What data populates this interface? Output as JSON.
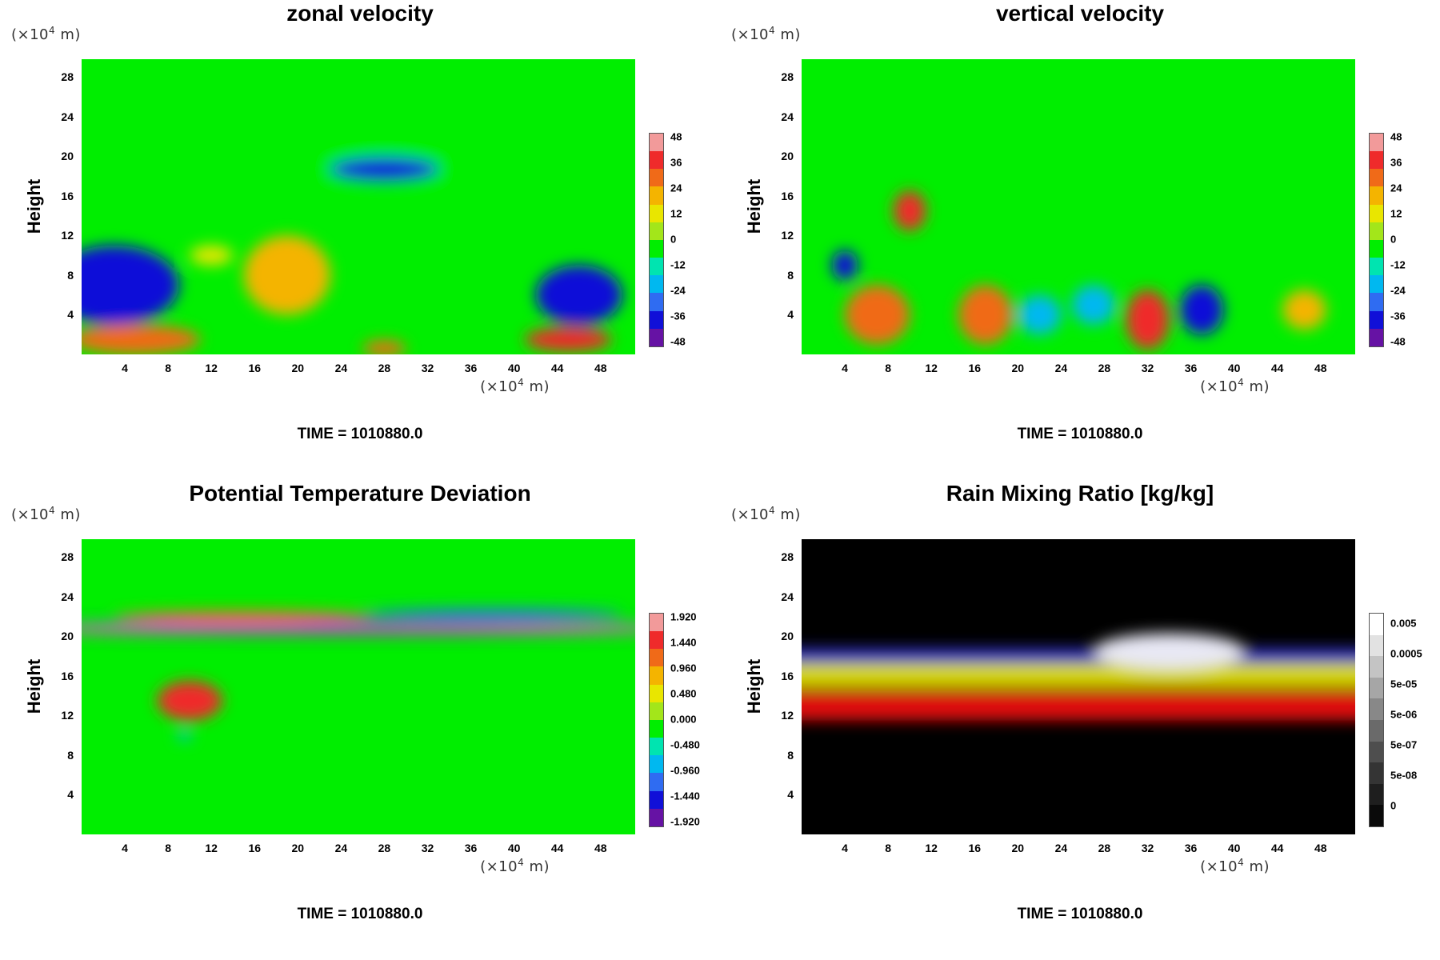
{
  "figure": {
    "panels": [
      {
        "id": "zonal",
        "title": "zonal velocity",
        "y_unit_prefix": "(×10",
        "y_unit_exp": "4",
        "y_unit_suffix": " m)",
        "x_unit_prefix": "(×10",
        "x_unit_exp": "4",
        "x_unit_suffix": " m)",
        "ylabel": "Height",
        "time_caption": "TIME = 1010880.0",
        "colorbar_labels": [
          "48",
          "36",
          "24",
          "12",
          "0",
          "-12",
          "-24",
          "-36",
          "-48"
        ]
      },
      {
        "id": "vertical",
        "title": "vertical velocity",
        "y_unit_prefix": "(×10",
        "y_unit_exp": "4",
        "y_unit_suffix": " m)",
        "x_unit_prefix": "(×10",
        "x_unit_exp": "4",
        "x_unit_suffix": " m)",
        "ylabel": "Height",
        "time_caption": "TIME = 1010880.0",
        "colorbar_labels": [
          "48",
          "36",
          "24",
          "12",
          "0",
          "-12",
          "-24",
          "-36",
          "-48"
        ]
      },
      {
        "id": "theta",
        "title": "Potential Temperature Deviation",
        "y_unit_prefix": "(×10",
        "y_unit_exp": "4",
        "y_unit_suffix": " m)",
        "x_unit_prefix": "(×10",
        "x_unit_exp": "4",
        "x_unit_suffix": " m)",
        "ylabel": "Height",
        "time_caption": "TIME = 1010880.0",
        "colorbar_labels": [
          "1.920",
          "1.440",
          "0.960",
          "0.480",
          "0.000",
          "-0.480",
          "-0.960",
          "-1.440",
          "-1.920"
        ]
      },
      {
        "id": "rain",
        "title": "Rain Mixing Ratio [kg/kg]",
        "y_unit_prefix": "(×10",
        "y_unit_exp": "4",
        "y_unit_suffix": " m)",
        "x_unit_prefix": "(×10",
        "x_unit_exp": "4",
        "x_unit_suffix": " m)",
        "ylabel": "Height",
        "time_caption": "TIME = 1010880.0",
        "colorbar_labels": [
          "0.005",
          "0.0005",
          "5e-05",
          "5e-06",
          "5e-07",
          "5e-08",
          "0"
        ]
      }
    ]
  },
  "chart_data": [
    {
      "type": "heatmap",
      "title": "zonal velocity",
      "xlabel": "(×10⁴ m)",
      "ylabel": "Height",
      "x_ticks": [
        4,
        8,
        12,
        16,
        20,
        24,
        28,
        32,
        36,
        40,
        44,
        48
      ],
      "y_ticks": [
        4,
        8,
        12,
        16,
        20,
        24,
        28
      ],
      "xlim": [
        0,
        51.2
      ],
      "ylim": [
        0,
        29.8
      ],
      "colorbar": {
        "ticks": [
          48,
          36,
          24,
          12,
          0,
          -12,
          -24,
          -36,
          -48
        ],
        "range": [
          -54,
          54
        ]
      },
      "features": [
        {
          "x": 28,
          "y": 25,
          "value": 0,
          "rx": 40,
          "ry": 8
        },
        {
          "x": 3,
          "y": 7,
          "value": -42,
          "rx": 6,
          "ry": 4
        },
        {
          "x": 19,
          "y": 8,
          "value": 22,
          "rx": 4,
          "ry": 4
        },
        {
          "x": 28,
          "y": 18.7,
          "value": -40,
          "rx": 5,
          "ry": 1.2
        },
        {
          "x": 46,
          "y": 6,
          "value": -42,
          "rx": 4,
          "ry": 3
        },
        {
          "x": 5,
          "y": 1.5,
          "value": 36,
          "rx": 6,
          "ry": 1.5
        },
        {
          "x": 45,
          "y": 1.5,
          "value": 44,
          "rx": 4,
          "ry": 1.2
        },
        {
          "x": 28,
          "y": 0.6,
          "value": 36,
          "rx": 2,
          "ry": 0.8
        },
        {
          "x": 12,
          "y": 10,
          "value": 16,
          "rx": 2,
          "ry": 1
        }
      ]
    },
    {
      "type": "heatmap",
      "title": "vertical velocity",
      "xlabel": "(×10⁴ m)",
      "ylabel": "Height",
      "x_ticks": [
        4,
        8,
        12,
        16,
        20,
        24,
        28,
        32,
        36,
        40,
        44,
        48
      ],
      "y_ticks": [
        4,
        8,
        12,
        16,
        20,
        24,
        28
      ],
      "xlim": [
        0,
        51.2
      ],
      "ylim": [
        0,
        29.8
      ],
      "colorbar": {
        "ticks": [
          48,
          36,
          24,
          12,
          0,
          -12,
          -24,
          -36,
          -48
        ],
        "range": [
          -54,
          54
        ]
      },
      "features": [
        {
          "x": 7,
          "y": 4,
          "value": 36,
          "rx": 3,
          "ry": 3
        },
        {
          "x": 17,
          "y": 4,
          "value": 30,
          "rx": 2.5,
          "ry": 3
        },
        {
          "x": 32,
          "y": 3.5,
          "value": 44,
          "rx": 2,
          "ry": 3
        },
        {
          "x": 46.5,
          "y": 4.5,
          "value": 24,
          "rx": 2,
          "ry": 2
        },
        {
          "x": 10,
          "y": 14.5,
          "value": 40,
          "rx": 1.5,
          "ry": 2
        },
        {
          "x": 37,
          "y": 4.5,
          "value": -36,
          "rx": 2,
          "ry": 2.5
        },
        {
          "x": 4,
          "y": 9,
          "value": -40,
          "rx": 1.2,
          "ry": 1.5
        },
        {
          "x": 22,
          "y": 4,
          "value": -24,
          "rx": 2,
          "ry": 2
        },
        {
          "x": 27,
          "y": 5,
          "value": -20,
          "rx": 2,
          "ry": 2
        }
      ]
    },
    {
      "type": "heatmap",
      "title": "Potential Temperature Deviation",
      "xlabel": "(×10⁴ m)",
      "ylabel": "Height",
      "x_ticks": [
        4,
        8,
        12,
        16,
        20,
        24,
        28,
        32,
        36,
        40,
        44,
        48
      ],
      "y_ticks": [
        4,
        8,
        12,
        16,
        20,
        24,
        28
      ],
      "xlim": [
        0,
        51.2
      ],
      "ylim": [
        0,
        29.8
      ],
      "colorbar": {
        "ticks": [
          1.92,
          1.44,
          0.96,
          0.48,
          0.0,
          -0.48,
          -0.96,
          -1.44,
          -1.92
        ],
        "range": [
          -2.16,
          2.16
        ]
      },
      "features": [
        {
          "x": 25,
          "y": 20.8,
          "value": 2.1,
          "rx": 30,
          "ry": 0.35
        },
        {
          "x": 25,
          "y": 20.3,
          "value": -2.0,
          "rx": 30,
          "ry": 0.3
        },
        {
          "x": 25,
          "y": 21.3,
          "value": -1.7,
          "rx": 30,
          "ry": 0.25
        },
        {
          "x": 15,
          "y": 22,
          "value": 1.2,
          "rx": 12,
          "ry": 0.6
        },
        {
          "x": 38,
          "y": 22.3,
          "value": -1.3,
          "rx": 12,
          "ry": 0.5
        },
        {
          "x": 10,
          "y": 13.5,
          "value": 1.5,
          "rx": 3,
          "ry": 2
        },
        {
          "x": 9.5,
          "y": 10,
          "value": -1.0,
          "rx": 0.6,
          "ry": 0.5
        }
      ]
    },
    {
      "type": "heatmap",
      "title": "Rain Mixing Ratio [kg/kg]",
      "xlabel": "(×10⁴ m)",
      "ylabel": "Height",
      "x_ticks": [
        4,
        8,
        12,
        16,
        20,
        24,
        28,
        32,
        36,
        40,
        44,
        48
      ],
      "y_ticks": [
        4,
        8,
        12,
        16,
        20,
        24,
        28
      ],
      "xlim": [
        0,
        51.2
      ],
      "ylim": [
        0,
        29.8
      ],
      "colorbar": {
        "ticks": [
          "0.005",
          "0.0005",
          "5e-05",
          "5e-06",
          "5e-07",
          "5e-08",
          "0"
        ],
        "scale": "log"
      },
      "features": [
        {
          "x_range": [
            0,
            51.2
          ],
          "y": 13,
          "value": 5e-07,
          "thickness": 3,
          "color_class": "red"
        },
        {
          "x_range": [
            0,
            51.2
          ],
          "y": 16,
          "value": 5e-06,
          "thickness": 2.5,
          "color_class": "yellow"
        },
        {
          "x_range": [
            0,
            51.2
          ],
          "y": 18,
          "value": 5e-05,
          "thickness": 1.5,
          "color_class": "blue"
        },
        {
          "x": 34,
          "y": 18.5,
          "value": 0.005,
          "rx": 7,
          "ry": 1.8,
          "color_class": "white"
        }
      ]
    }
  ]
}
